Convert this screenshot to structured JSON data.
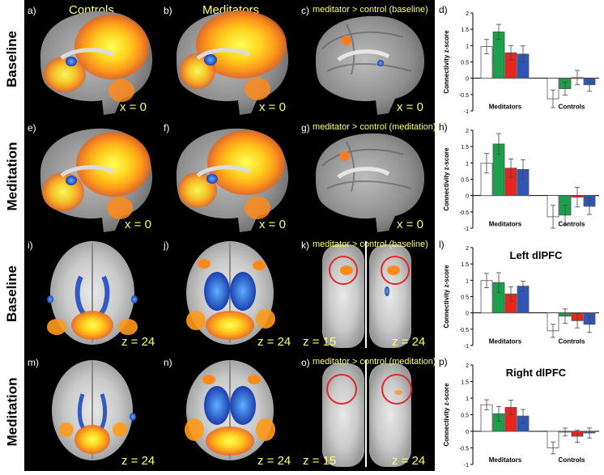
{
  "headers": {
    "controls": "Controls",
    "meditators": "Meditators"
  },
  "row_labels": {
    "baseline_top": "Baseline",
    "meditation_top": "Meditation",
    "baseline_bottom": "Baseline",
    "meditation_bottom": "Meditation"
  },
  "panels": {
    "a": {
      "letter": "a)",
      "coord": "x = 0"
    },
    "b": {
      "letter": "b)",
      "coord": "x = 0"
    },
    "c": {
      "letter": "c)",
      "subtitle": "meditator > control (baseline)",
      "coord": "x = 0"
    },
    "e": {
      "letter": "e)",
      "coord": "x = 0"
    },
    "f": {
      "letter": "f)",
      "coord": "x = 0"
    },
    "g": {
      "letter": "g)",
      "subtitle": "meditator > control (meditation)",
      "coord": "x = 0"
    },
    "i": {
      "letter": "i)",
      "coord": "z = 24"
    },
    "j": {
      "letter": "j)",
      "coord": "z = 24"
    },
    "k": {
      "letter": "k)",
      "subtitle": "meditator > control (baseline)",
      "coord_left": "z = 15",
      "coord_right": "z = 24"
    },
    "m": {
      "letter": "m)",
      "coord": "z = 24"
    },
    "n": {
      "letter": "n)",
      "coord": "z = 24"
    },
    "o": {
      "letter": "o)",
      "subtitle": "meditator > control (meditation)",
      "coord_left": "z = 15",
      "coord_right": "z = 24"
    }
  },
  "colors": {
    "white_bar": "#ffffff",
    "green_bar": "#1aa04a",
    "red_bar": "#e8261f",
    "blue_bar": "#2f55b5"
  },
  "chart_data": [
    {
      "letter": "d)",
      "title": "",
      "type": "bar",
      "ylabel": "Connectivity z-score",
      "groups": [
        "Meditators",
        "Controls"
      ],
      "ylim": [
        -1,
        2
      ],
      "yticks": [
        "2",
        "1.5",
        "1",
        "0.5",
        "0",
        "-0.5",
        "-1"
      ],
      "values": [
        [
          0.97,
          1.42,
          0.78,
          0.74
        ],
        [
          -0.63,
          -0.32,
          0.02,
          -0.2
        ]
      ],
      "errors": [
        [
          0.22,
          0.23,
          0.22,
          0.25
        ],
        [
          0.27,
          0.2,
          0.22,
          0.2
        ]
      ]
    },
    {
      "letter": "h)",
      "title": "",
      "type": "bar",
      "ylabel": "Connectivity z-score",
      "groups": [
        "Meditators",
        "Controls"
      ],
      "ylim": [
        -1,
        2
      ],
      "yticks": [
        "2",
        "1.5",
        "1",
        "0.5",
        "0",
        "-0.5",
        "-1"
      ],
      "values": [
        [
          0.99,
          1.58,
          0.84,
          0.8
        ],
        [
          -0.65,
          -0.6,
          -0.05,
          -0.33
        ]
      ],
      "errors": [
        [
          0.3,
          0.32,
          0.28,
          0.3
        ],
        [
          0.35,
          0.3,
          0.3,
          0.25
        ]
      ]
    },
    {
      "letter": "l)",
      "title": "Left dlPFC",
      "type": "bar",
      "ylabel": "Connectivity z-score",
      "groups": [
        "Meditators",
        "Controls"
      ],
      "ylim": [
        -1,
        2
      ],
      "yticks": [
        "2",
        "1.5",
        "1",
        "0.5",
        "0",
        "-0.5",
        "-1"
      ],
      "values": [
        [
          0.99,
          0.93,
          0.58,
          0.82
        ],
        [
          -0.55,
          -0.1,
          -0.24,
          -0.35
        ]
      ],
      "errors": [
        [
          0.22,
          0.3,
          0.22,
          0.15
        ],
        [
          0.2,
          0.22,
          0.22,
          0.25
        ]
      ]
    },
    {
      "letter": "p)",
      "title": "Right dlPFC",
      "type": "bar",
      "ylabel": "Connectivity z-score",
      "groups": [
        "Meditators",
        "Controls"
      ],
      "ylim": [
        -1,
        2
      ],
      "yticks": [
        "2",
        "1.5",
        "1",
        "0.5",
        "0",
        "-0.5",
        "-1"
      ],
      "values": [
        [
          0.8,
          0.53,
          0.72,
          0.46
        ],
        [
          -0.5,
          -0.02,
          -0.15,
          -0.05
        ]
      ],
      "errors": [
        [
          0.15,
          0.22,
          0.22,
          0.2
        ],
        [
          0.18,
          0.12,
          0.18,
          0.15
        ]
      ]
    }
  ]
}
